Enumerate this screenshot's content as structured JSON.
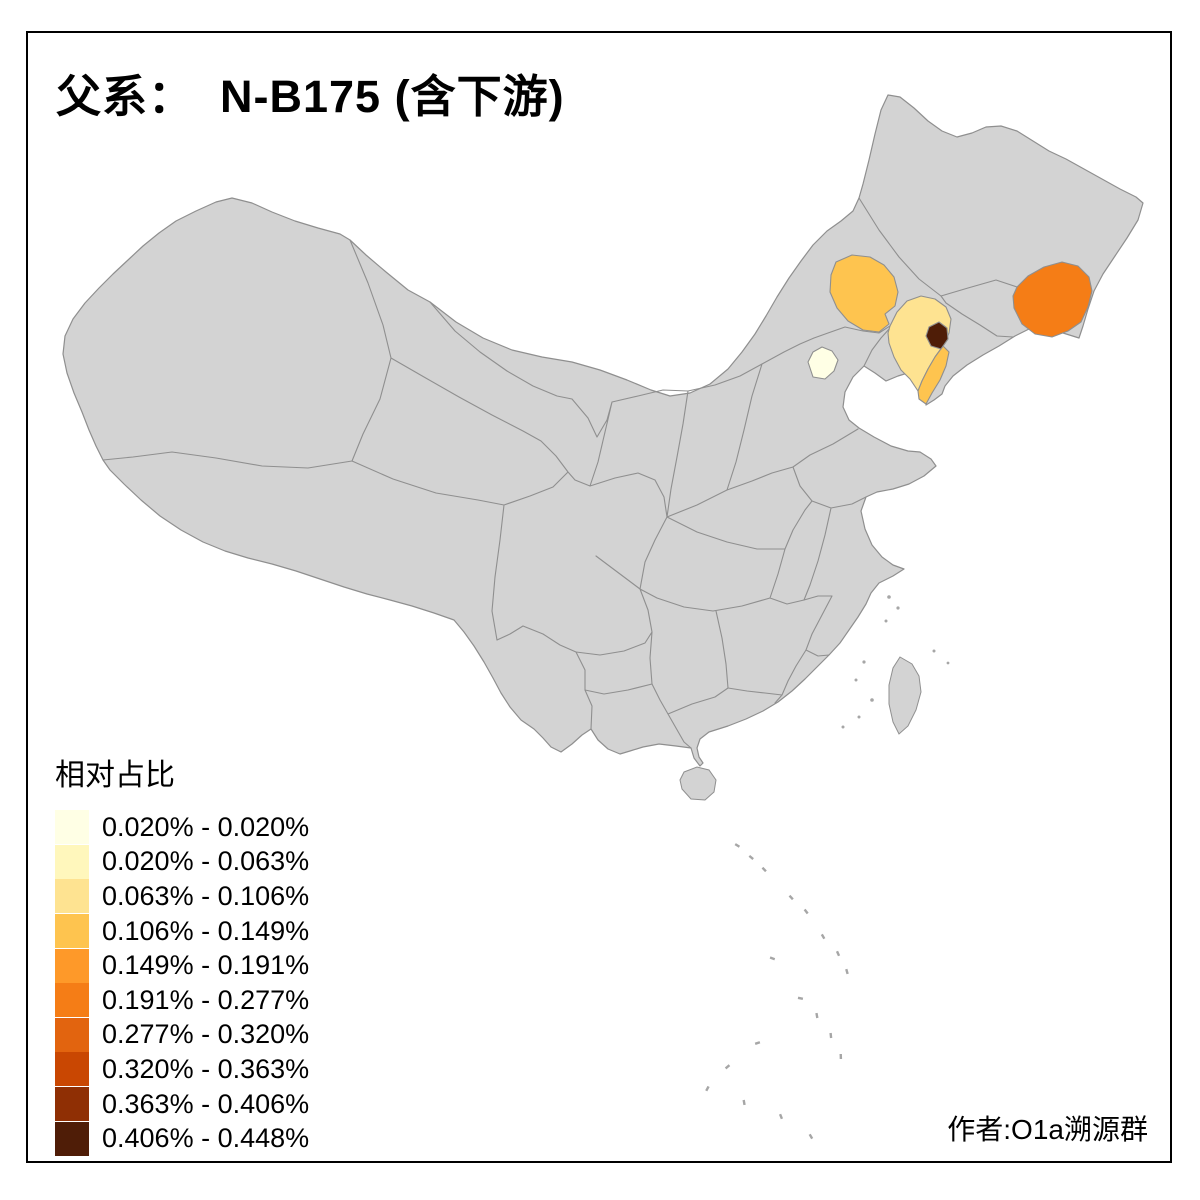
{
  "title": {
    "prefix": "父系：",
    "main": "N-B175 (含下游)"
  },
  "legend": {
    "title": "相对占比",
    "entries": [
      {
        "label": "0.020% - 0.020%",
        "color": "#FFFFE5"
      },
      {
        "label": "0.020% - 0.063%",
        "color": "#FFF7BC"
      },
      {
        "label": "0.063% - 0.106%",
        "color": "#FEE391"
      },
      {
        "label": "0.106% - 0.149%",
        "color": "#FEC44F"
      },
      {
        "label": "0.149% - 0.191%",
        "color": "#FE9929"
      },
      {
        "label": "0.191% - 0.277%",
        "color": "#F57D16"
      },
      {
        "label": "0.277% - 0.320%",
        "color": "#E2640F"
      },
      {
        "label": "0.320% - 0.363%",
        "color": "#C94702"
      },
      {
        "label": "0.363% - 0.406%",
        "color": "#8F2F04"
      },
      {
        "label": "0.406% - 0.448%",
        "color": "#4F1D07"
      }
    ]
  },
  "credit": "作者:O1a溯源群",
  "map": {
    "land_fill": "#D3D3D3",
    "border_color": "#8F8F8F",
    "background": "#FFFFFF",
    "highlighted_regions": [
      {
        "name": "beijing-area",
        "color": "#FFFFE5",
        "legend_class": "0.020% - 0.020%"
      },
      {
        "name": "chifeng-area",
        "color": "#FEC44F",
        "legend_class": "0.106% - 0.149%"
      },
      {
        "name": "liaoning-area",
        "color": "#FEE391",
        "legend_class": "0.063% - 0.106%"
      },
      {
        "name": "liaodong-peninsula-area",
        "color": "#FEC44F",
        "legend_class": "0.106% - 0.149%"
      },
      {
        "name": "shenyang-area",
        "color": "#4F1D07",
        "legend_class": "0.406% - 0.448%"
      },
      {
        "name": "yanbian-area",
        "color": "#F57D16",
        "legend_class": "0.191% - 0.277%"
      }
    ]
  }
}
